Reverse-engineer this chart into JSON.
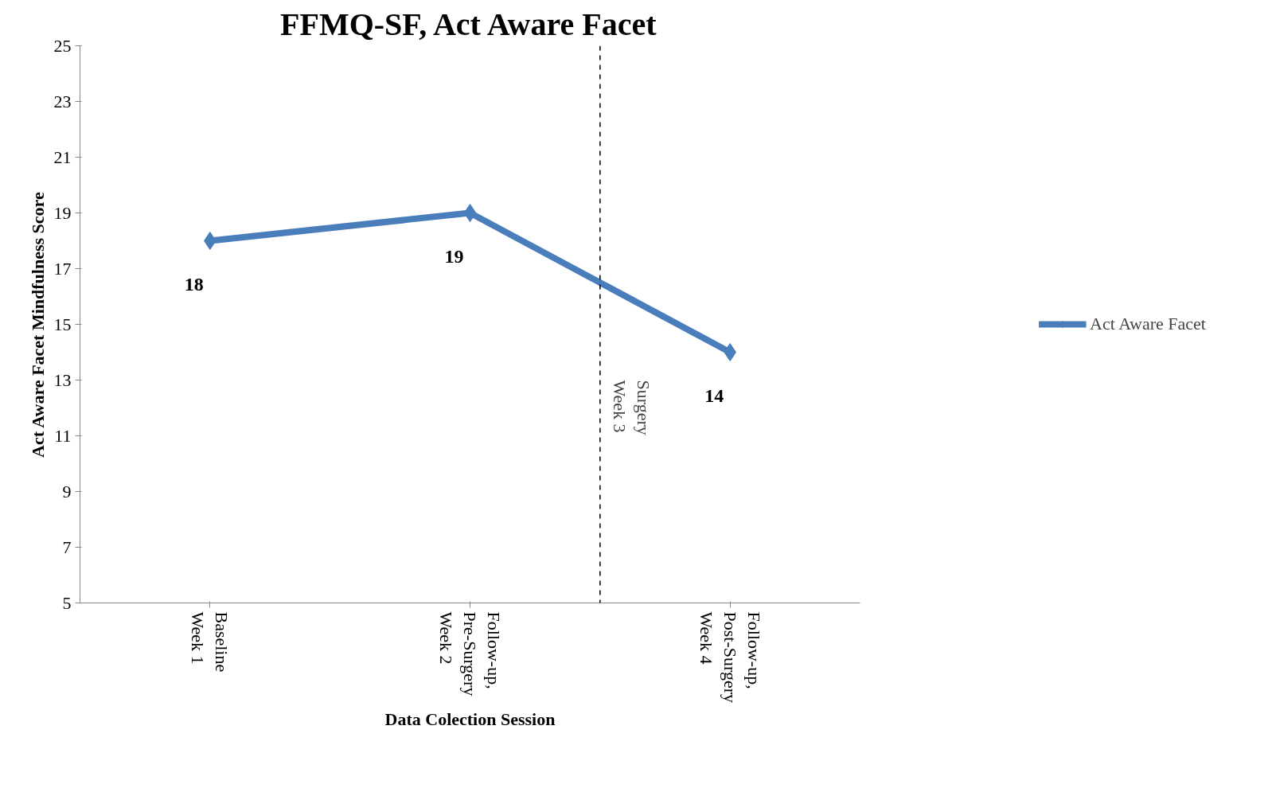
{
  "chart_data": {
    "type": "line",
    "title": "FFMQ-SF, Act Aware Facet",
    "xlabel": "Data Colection Session",
    "ylabel": "Act Aware Facet Mindfulness Score",
    "categories": [
      "Baseline\nWeek 1",
      "Follow-up,\nPre-Surgery\nWeek 2",
      "Follow-up,\nPost-Surgery\nWeek 4"
    ],
    "series": [
      {
        "name": "Act Aware Facet",
        "color": "#4a7ebb",
        "values": [
          18,
          19,
          14
        ]
      }
    ],
    "ylim": [
      5,
      25
    ],
    "yticks": [
      5,
      7,
      9,
      11,
      13,
      15,
      17,
      19,
      21,
      23,
      25
    ],
    "annotations": [
      "Surgery\nWeek 3"
    ],
    "data_labels": true,
    "marker": "diamond",
    "line_style": "solid",
    "legend": "right",
    "grid": false
  }
}
